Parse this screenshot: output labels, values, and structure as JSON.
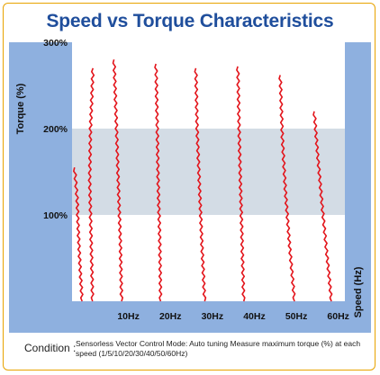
{
  "title": "Speed vs Torque Characteristics",
  "condition": {
    "label": "Condition :",
    "text": "Sensorless Vector Control Mode: Auto tuning Measure maximum torque (%) at each speed (1/5/10/20/30/40/50/60Hz)"
  },
  "colors": {
    "axis_band": "#8eb0df",
    "plot_bg": "#ffffff",
    "highlight_band": "#d3dce5",
    "curve": "#e3141b",
    "title": "#1f4e9c",
    "border": "#e8a300"
  },
  "chart_data": {
    "type": "line",
    "title": "Speed vs Torque Characteristics",
    "xlabel": "Speed (Hz)",
    "ylabel": "Torque (%)",
    "x_tick_labels": [
      "10Hz",
      "20Hz",
      "30Hz",
      "40Hz",
      "50Hz",
      "60Hz"
    ],
    "x_ticks": [
      10,
      20,
      30,
      40,
      50,
      60
    ],
    "xlim": [
      0,
      65
    ],
    "y_ticks": [
      100,
      200,
      300
    ],
    "y_tick_labels": [
      "100%",
      "200%",
      "300%"
    ],
    "ylim": [
      0,
      300
    ],
    "highlight_band": [
      100,
      200
    ],
    "series": [
      {
        "values": [
          [
            0.6,
            155
          ],
          [
            1.2,
            120
          ],
          [
            1.5,
            80
          ],
          [
            1.9,
            40
          ],
          [
            2.4,
            0
          ]
        ]
      },
      {
        "values": [
          [
            5.0,
            270
          ],
          [
            4.4,
            200
          ],
          [
            4.2,
            140
          ],
          [
            4.5,
            80
          ],
          [
            4.9,
            0
          ]
        ]
      },
      {
        "values": [
          [
            10.0,
            280
          ],
          [
            10.6,
            200
          ],
          [
            11.0,
            140
          ],
          [
            11.5,
            70
          ],
          [
            11.8,
            0
          ]
        ]
      },
      {
        "values": [
          [
            20.0,
            275
          ],
          [
            20.3,
            200
          ],
          [
            20.5,
            140
          ],
          [
            20.9,
            70
          ],
          [
            21.1,
            0
          ]
        ]
      },
      {
        "values": [
          [
            29.5,
            270
          ],
          [
            29.8,
            200
          ],
          [
            30.3,
            140
          ],
          [
            30.9,
            70
          ],
          [
            31.6,
            0
          ]
        ]
      },
      {
        "values": [
          [
            39.5,
            272
          ],
          [
            39.8,
            200
          ],
          [
            40.1,
            140
          ],
          [
            40.5,
            70
          ],
          [
            40.9,
            0
          ]
        ]
      },
      {
        "values": [
          [
            49.6,
            262
          ],
          [
            50.1,
            190
          ],
          [
            50.8,
            130
          ],
          [
            51.9,
            60
          ],
          [
            53.0,
            0
          ]
        ]
      },
      {
        "values": [
          [
            57.7,
            220
          ],
          [
            58.5,
            170
          ],
          [
            59.6,
            110
          ],
          [
            60.8,
            50
          ],
          [
            61.8,
            0
          ]
        ]
      }
    ]
  }
}
